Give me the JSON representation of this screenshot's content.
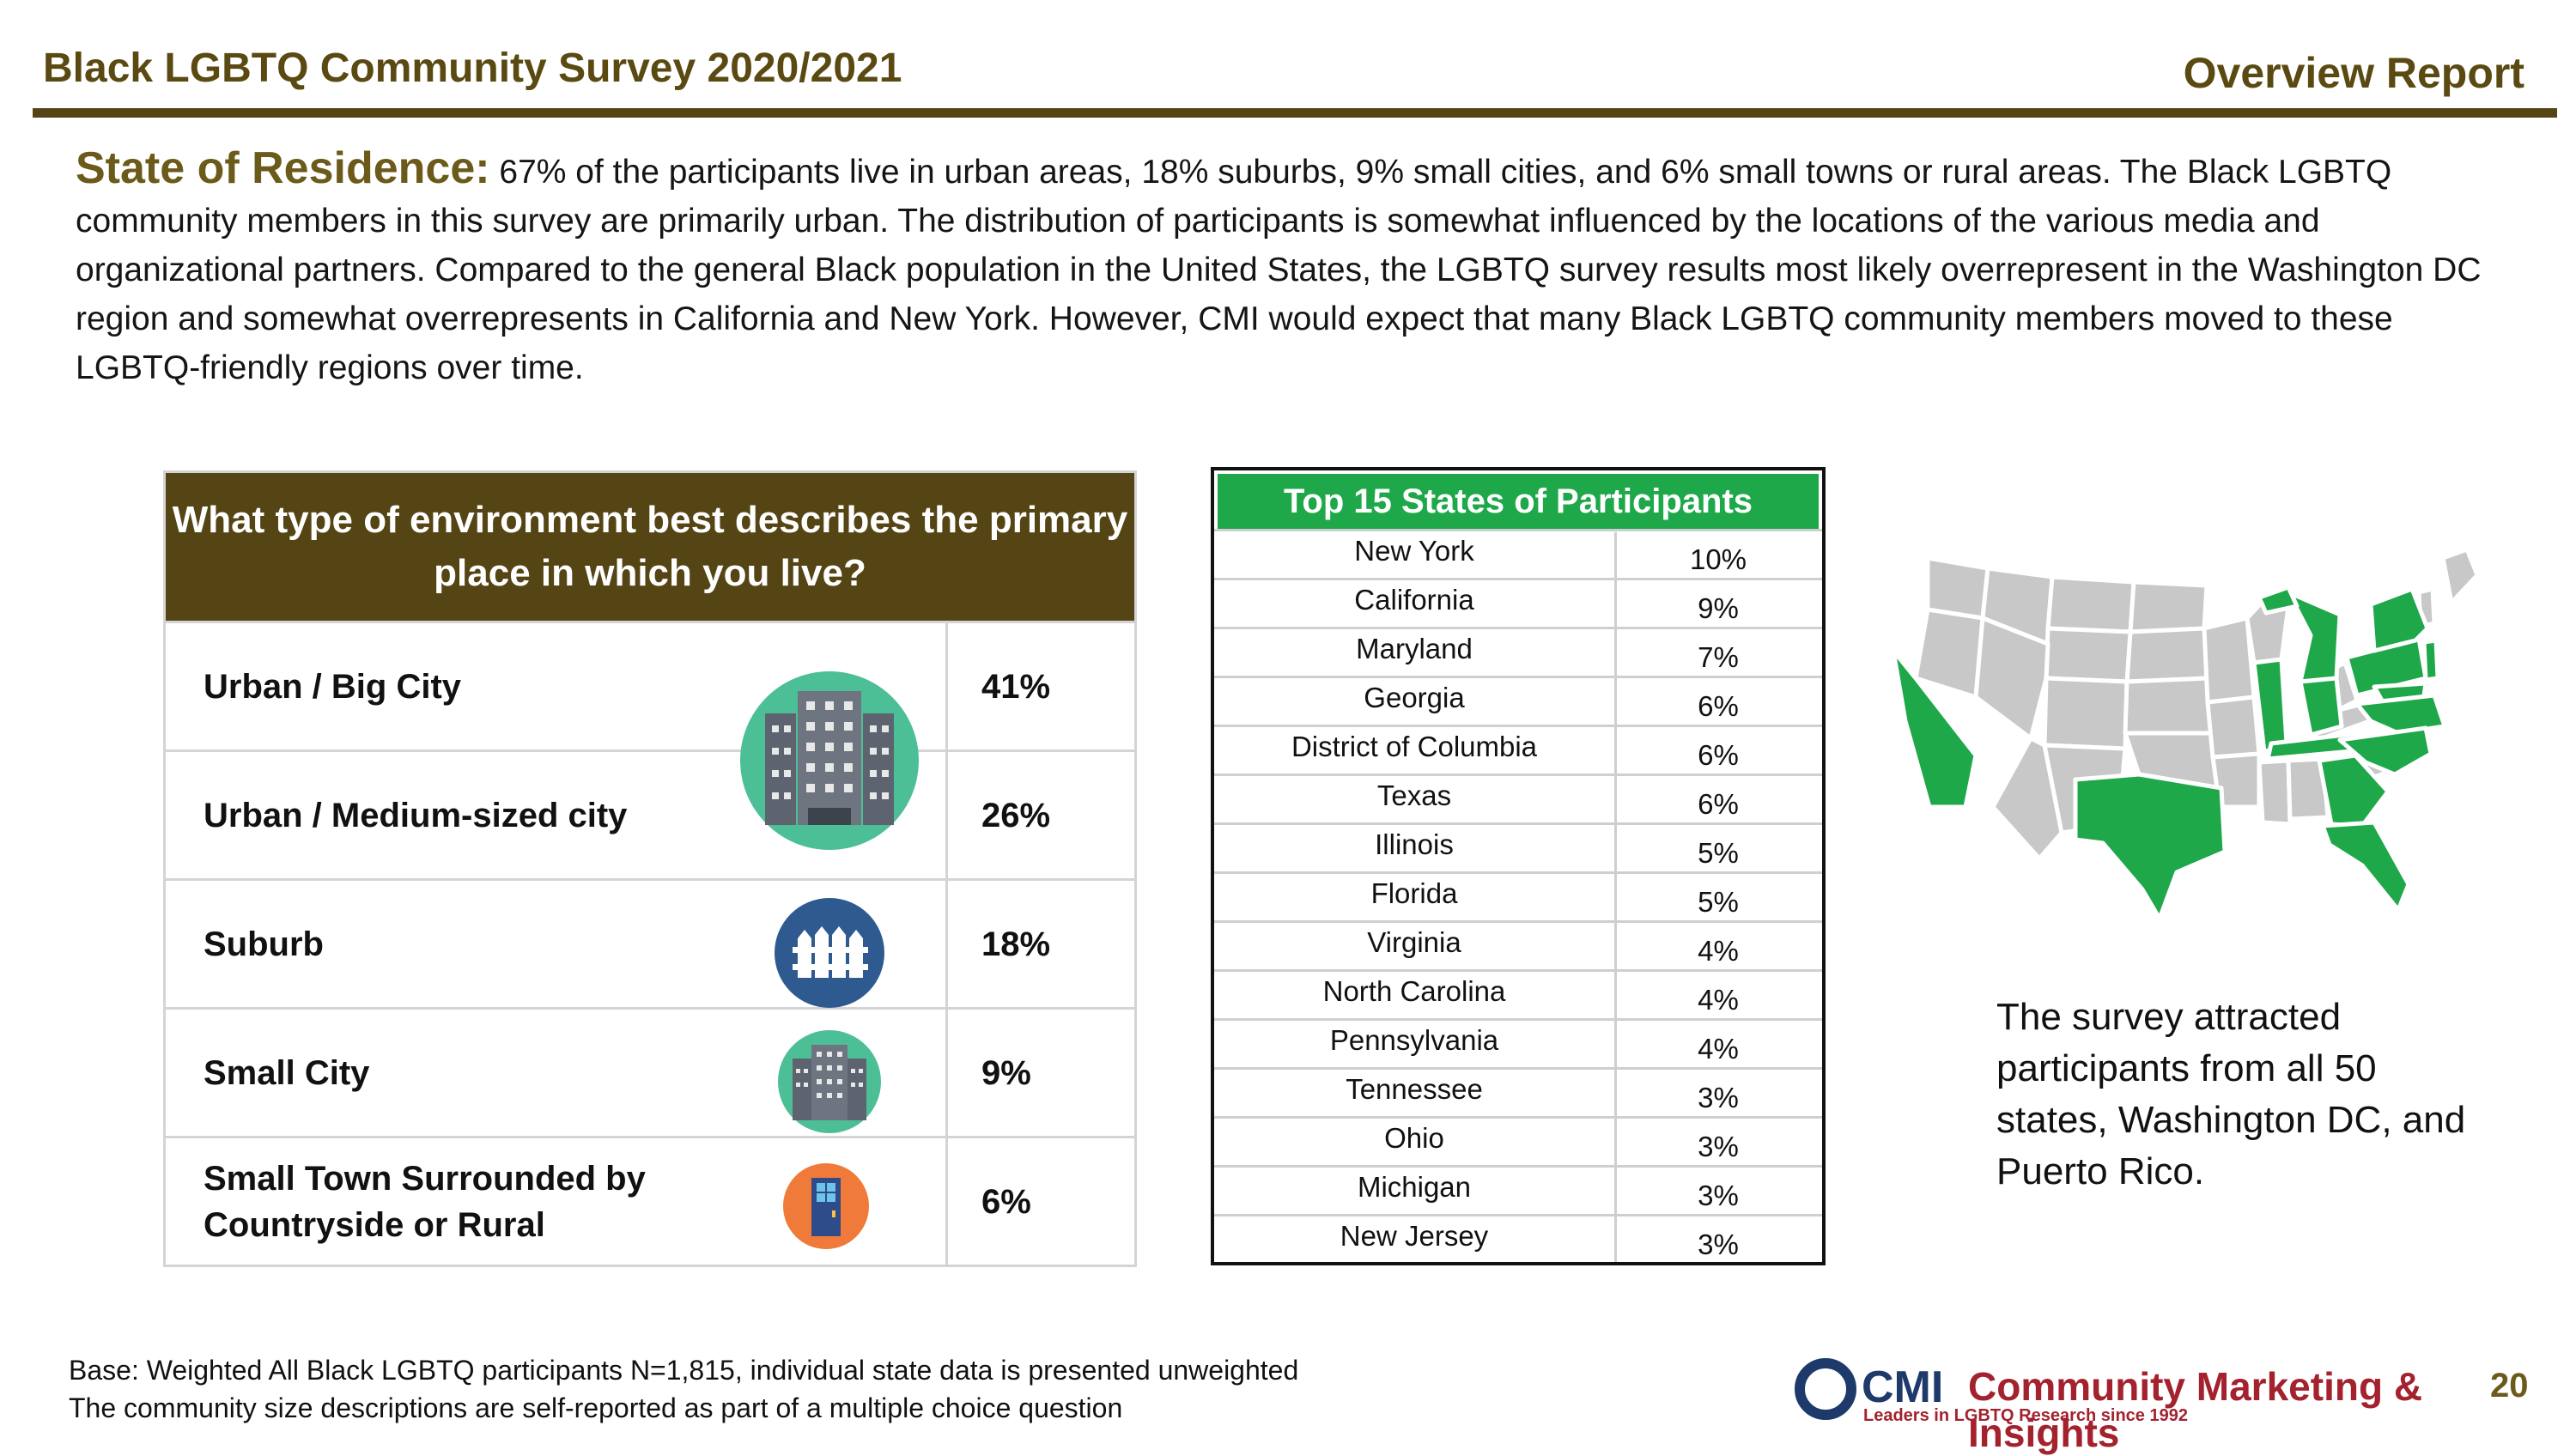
{
  "header": {
    "title": "Black LGBTQ Community Survey 2020/2021",
    "report": "Overview Report"
  },
  "intro": {
    "lead": "State of Residence:",
    "text": " 67% of the participants live in urban areas, 18% suburbs, 9% small cities, and 6% small towns or rural areas. The Black LGBTQ community members in this survey are primarily urban. The distribution of participants is somewhat influenced by the locations of the various media and organizational partners. Compared to the general Black population in the United States, the LGBTQ survey results most likely overrepresent in the Washington DC region and somewhat overrepresents in California and New York. However, CMI would expect that many Black LGBTQ community members moved to these LGBTQ-friendly regions over time."
  },
  "environment": {
    "question": "What type of environment best describes the primary place in which you live?",
    "rows": [
      {
        "label": "Urban / Big City",
        "value": "41%"
      },
      {
        "label": "Urban / Medium-sized city",
        "value": "26%"
      },
      {
        "label": "Suburb",
        "value": "18%"
      },
      {
        "label": "Small City",
        "value": "9%"
      },
      {
        "label": "Small Town Surrounded by Countryside or Rural",
        "value": "6%"
      }
    ],
    "icons": [
      "big-city-building-icon",
      "suburb-fence-icon",
      "small-city-building-icon",
      "small-town-door-icon"
    ]
  },
  "states": {
    "title": "Top 15 States of Participants",
    "rows": [
      {
        "name": "New York",
        "value": "10%"
      },
      {
        "name": "California",
        "value": "9%"
      },
      {
        "name": "Maryland",
        "value": "7%"
      },
      {
        "name": "Georgia",
        "value": "6%"
      },
      {
        "name": "District of Columbia",
        "value": "6%"
      },
      {
        "name": "Texas",
        "value": "6%"
      },
      {
        "name": "Illinois",
        "value": "5%"
      },
      {
        "name": "Florida",
        "value": "5%"
      },
      {
        "name": "Virginia",
        "value": "4%"
      },
      {
        "name": "North Carolina",
        "value": "4%"
      },
      {
        "name": "Pennsylvania",
        "value": "4%"
      },
      {
        "name": "Tennessee",
        "value": "3%"
      },
      {
        "name": "Ohio",
        "value": "3%"
      },
      {
        "name": "Michigan",
        "value": "3%"
      },
      {
        "name": "New Jersey",
        "value": "3%"
      }
    ]
  },
  "map": {
    "icon": "us-map-icon",
    "highlight_color": "#1fa84a",
    "base_color": "#c8c8c8"
  },
  "note": "The survey attracted participants from all 50 states, Washington DC, and Puerto Rico.",
  "footer": {
    "line1": "Base: Weighted All Black LGBTQ participants  N=1,815, individual state data is presented unweighted",
    "line2": "The community size descriptions are self-reported as part of a multiple choice question"
  },
  "logo": {
    "cmi": "CMI",
    "name": "Community Marketing & Insights",
    "tagline": "Leaders in LGBTQ Research since 1992"
  },
  "page_number": "20"
}
